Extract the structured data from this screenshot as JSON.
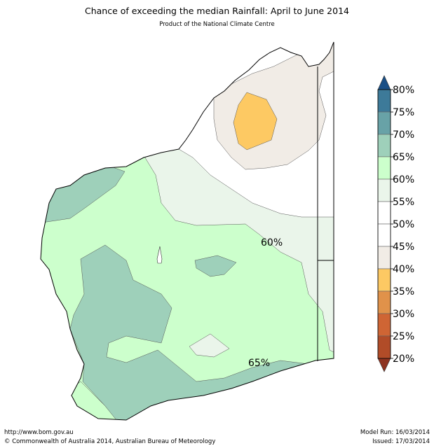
{
  "title": "Chance of exceeding the median Rainfall: April to June 2014",
  "subtitle": "Product of the National Climate Centre",
  "map_labels": [
    "60%",
    "65%"
  ],
  "colorbar": {
    "ticks": [
      "80%",
      "75%",
      "70%",
      "65%",
      "60%",
      "55%",
      "50%",
      "45%",
      "40%",
      "35%",
      "30%",
      "25%",
      "20%"
    ],
    "colors": {
      "above_80": "#1a4f86",
      "75_80": "#3d7a99",
      "70_75": "#68a2a7",
      "65_70": "#9ed0ba",
      "60_65": "#ccffcc",
      "55_60": "#eaf5ea",
      "50_55": "#ffffff",
      "45_50": "#ffffff",
      "40_45": "#f1ece6",
      "35_40": "#fdc963",
      "30_35": "#e0924a",
      "25_30": "#cf6534",
      "20_25": "#b14c28",
      "below_20": "#8e3320"
    }
  },
  "footer": {
    "url": "http://www.bom.gov.au",
    "copyright": "©  Commonwealth of Australia 2014, Australian Bureau of Meteorology",
    "model_run": "Model Run: 16/03/2014",
    "issued": "Issued: 17/03/2014"
  }
}
